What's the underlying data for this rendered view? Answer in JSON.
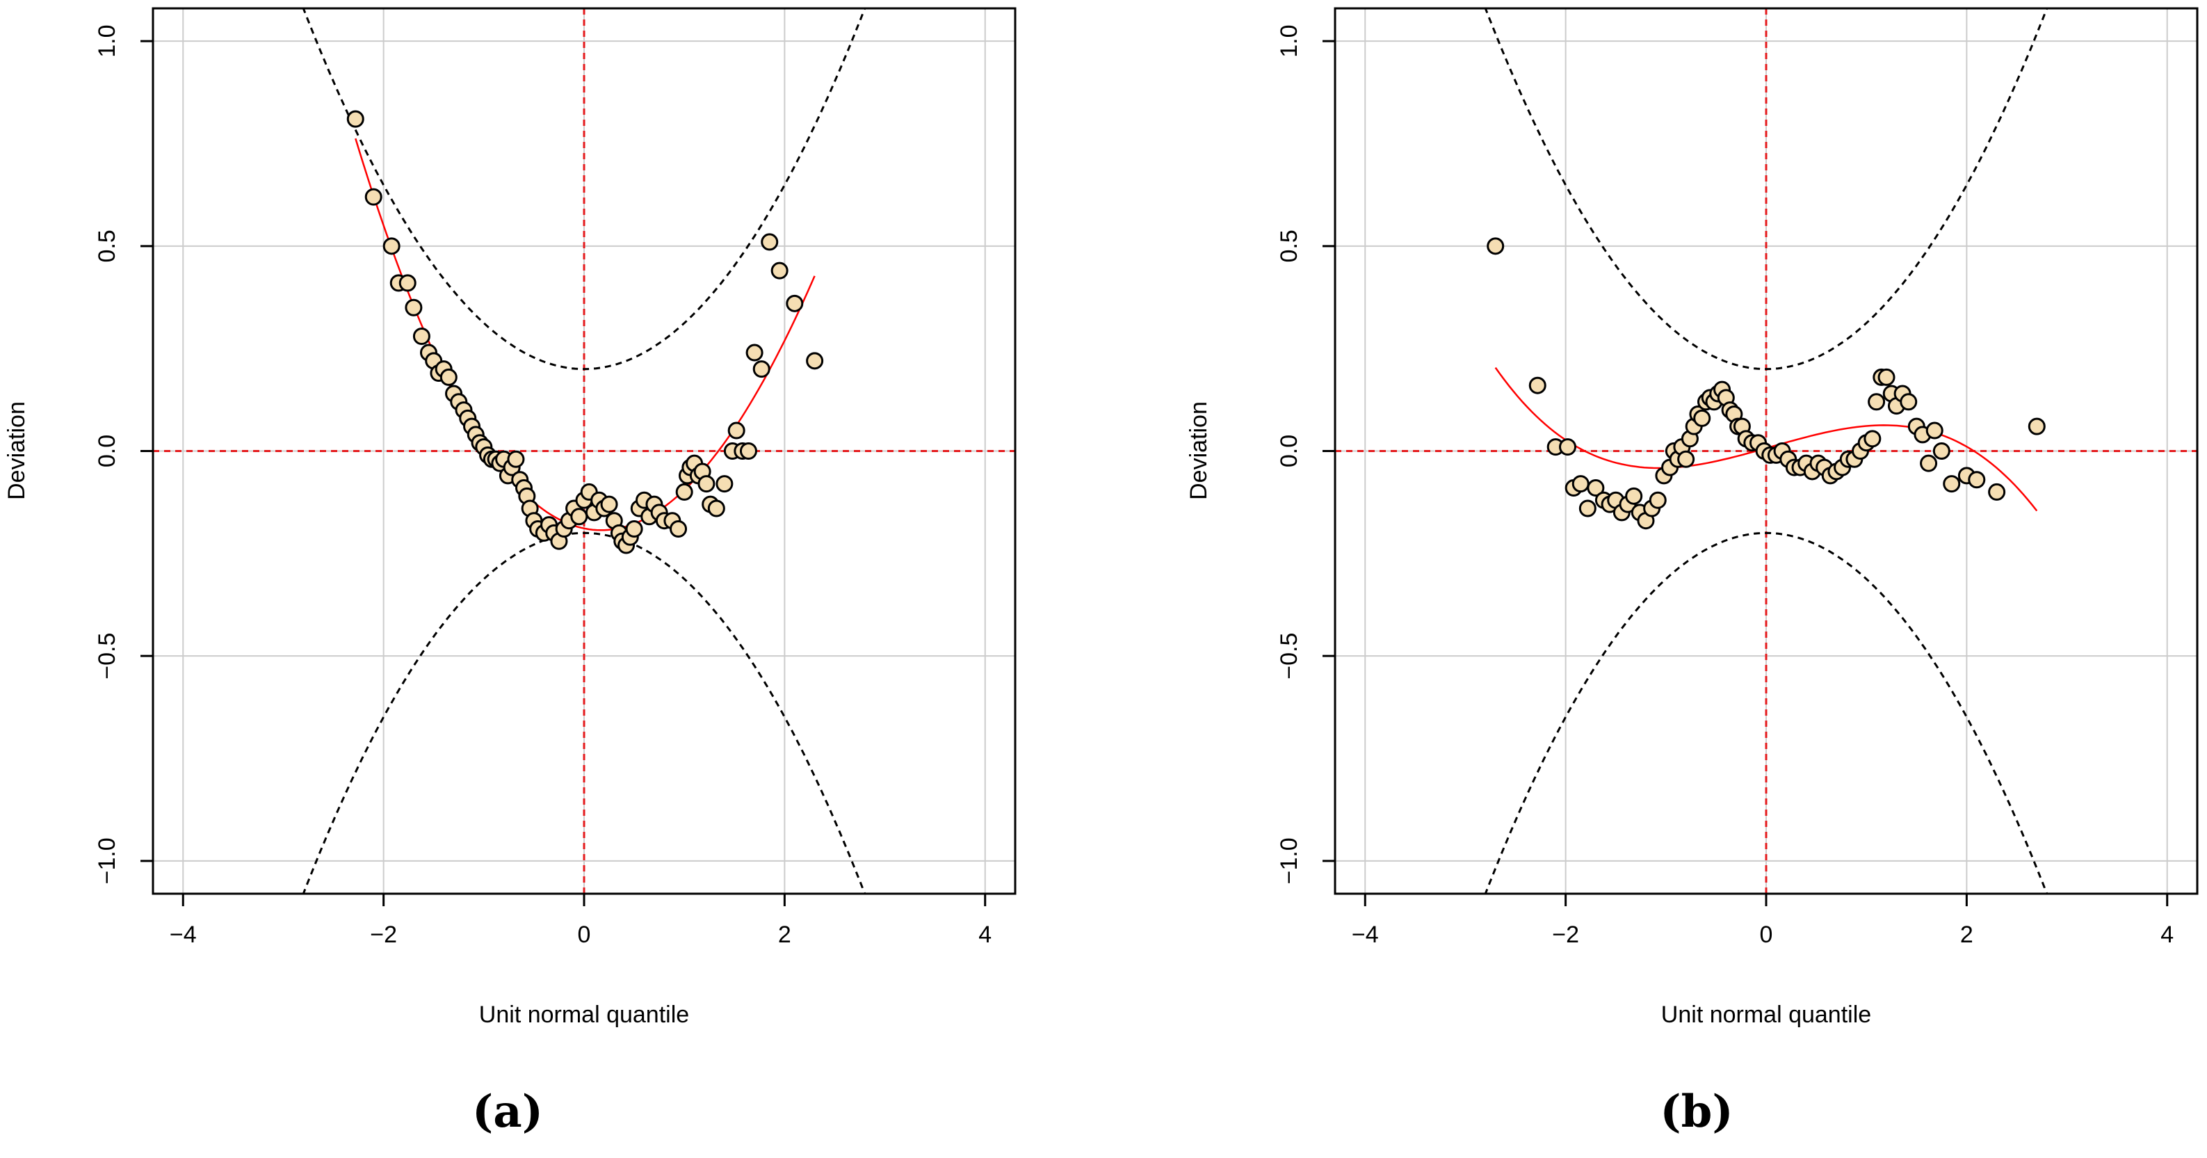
{
  "chart_data": [
    {
      "type": "scatter",
      "panel_label": "(a)",
      "xlabel": "Unit normal quantile",
      "ylabel": "Deviation",
      "xlim": [
        -4.3,
        4.3
      ],
      "ylim": [
        -1.08,
        1.08
      ],
      "xticks": [
        -4,
        -2,
        0,
        2,
        4
      ],
      "xtick_labels": [
        "−4",
        "−2",
        "0",
        "2",
        "4"
      ],
      "yticks": [
        -1.0,
        -0.5,
        0.0,
        0.5,
        1.0
      ],
      "ytick_labels": [
        "−1.0",
        "−0.5",
        "0.0",
        "0.5",
        "1.0"
      ],
      "grid": true,
      "confidence_band": "dashed black curves",
      "trend_line": "solid red smoother",
      "points": [
        [
          -2.28,
          0.81
        ],
        [
          -2.1,
          0.62
        ],
        [
          -1.92,
          0.5
        ],
        [
          -1.85,
          0.41
        ],
        [
          -1.76,
          0.41
        ],
        [
          -1.7,
          0.35
        ],
        [
          -1.62,
          0.28
        ],
        [
          -1.55,
          0.24
        ],
        [
          -1.5,
          0.22
        ],
        [
          -1.45,
          0.19
        ],
        [
          -1.4,
          0.2
        ],
        [
          -1.35,
          0.18
        ],
        [
          -1.3,
          0.14
        ],
        [
          -1.25,
          0.12
        ],
        [
          -1.2,
          0.1
        ],
        [
          -1.16,
          0.08
        ],
        [
          -1.12,
          0.06
        ],
        [
          -1.08,
          0.04
        ],
        [
          -1.04,
          0.02
        ],
        [
          -1.0,
          0.01
        ],
        [
          -0.96,
          -0.01
        ],
        [
          -0.92,
          -0.02
        ],
        [
          -0.88,
          -0.02
        ],
        [
          -0.84,
          -0.03
        ],
        [
          -0.8,
          -0.02
        ],
        [
          -0.76,
          -0.06
        ],
        [
          -0.72,
          -0.04
        ],
        [
          -0.68,
          -0.02
        ],
        [
          -0.64,
          -0.07
        ],
        [
          -0.6,
          -0.09
        ],
        [
          -0.57,
          -0.11
        ],
        [
          -0.54,
          -0.14
        ],
        [
          -0.5,
          -0.17
        ],
        [
          -0.46,
          -0.19
        ],
        [
          -0.4,
          -0.2
        ],
        [
          -0.35,
          -0.18
        ],
        [
          -0.3,
          -0.2
        ],
        [
          -0.25,
          -0.22
        ],
        [
          -0.2,
          -0.19
        ],
        [
          -0.15,
          -0.17
        ],
        [
          -0.1,
          -0.14
        ],
        [
          -0.05,
          -0.16
        ],
        [
          0.0,
          -0.12
        ],
        [
          0.05,
          -0.1
        ],
        [
          0.1,
          -0.15
        ],
        [
          0.15,
          -0.12
        ],
        [
          0.2,
          -0.14
        ],
        [
          0.25,
          -0.13
        ],
        [
          0.3,
          -0.17
        ],
        [
          0.35,
          -0.2
        ],
        [
          0.38,
          -0.22
        ],
        [
          0.42,
          -0.23
        ],
        [
          0.46,
          -0.21
        ],
        [
          0.5,
          -0.19
        ],
        [
          0.55,
          -0.14
        ],
        [
          0.6,
          -0.12
        ],
        [
          0.65,
          -0.16
        ],
        [
          0.7,
          -0.13
        ],
        [
          0.75,
          -0.15
        ],
        [
          0.8,
          -0.17
        ],
        [
          0.88,
          -0.17
        ],
        [
          0.94,
          -0.19
        ],
        [
          1.0,
          -0.1
        ],
        [
          1.03,
          -0.06
        ],
        [
          1.06,
          -0.04
        ],
        [
          1.1,
          -0.03
        ],
        [
          1.14,
          -0.06
        ],
        [
          1.18,
          -0.05
        ],
        [
          1.22,
          -0.08
        ],
        [
          1.26,
          -0.13
        ],
        [
          1.32,
          -0.14
        ],
        [
          1.4,
          -0.08
        ],
        [
          1.48,
          0.0
        ],
        [
          1.52,
          0.05
        ],
        [
          1.58,
          0.0
        ],
        [
          1.64,
          0.0
        ],
        [
          1.7,
          0.24
        ],
        [
          1.77,
          0.2
        ],
        [
          1.85,
          0.51
        ],
        [
          1.95,
          0.44
        ],
        [
          2.1,
          0.36
        ],
        [
          2.3,
          0.22
        ]
      ],
      "band_points": [
        {
          "x": 0.0,
          "y": 0.2
        },
        {
          "x": 1.0,
          "y": 0.28
        },
        {
          "x": 1.6,
          "y": 0.42
        },
        {
          "x": 2.0,
          "y": 0.62
        },
        {
          "x": 2.4,
          "y": 0.84
        },
        {
          "x": 2.8,
          "y": 1.08
        }
      ]
    },
    {
      "type": "scatter",
      "panel_label": "(b)",
      "xlabel": "Unit normal quantile",
      "ylabel": "Deviation",
      "xlim": [
        -4.3,
        4.3
      ],
      "ylim": [
        -1.08,
        1.08
      ],
      "xticks": [
        -4,
        -2,
        0,
        2,
        4
      ],
      "xtick_labels": [
        "−4",
        "−2",
        "0",
        "2",
        "4"
      ],
      "yticks": [
        -1.0,
        -0.5,
        0.0,
        0.5,
        1.0
      ],
      "ytick_labels": [
        "−1.0",
        "−0.5",
        "0.0",
        "0.5",
        "1.0"
      ],
      "grid": true,
      "confidence_band": "dashed black curves",
      "trend_line": "solid red smoother",
      "points": [
        [
          -2.7,
          0.5
        ],
        [
          -2.28,
          0.16
        ],
        [
          -2.1,
          0.01
        ],
        [
          -1.98,
          0.01
        ],
        [
          -1.92,
          -0.09
        ],
        [
          -1.85,
          -0.08
        ],
        [
          -1.78,
          -0.14
        ],
        [
          -1.7,
          -0.09
        ],
        [
          -1.62,
          -0.12
        ],
        [
          -1.56,
          -0.13
        ],
        [
          -1.5,
          -0.12
        ],
        [
          -1.44,
          -0.15
        ],
        [
          -1.38,
          -0.13
        ],
        [
          -1.32,
          -0.11
        ],
        [
          -1.26,
          -0.15
        ],
        [
          -1.2,
          -0.17
        ],
        [
          -1.14,
          -0.14
        ],
        [
          -1.08,
          -0.12
        ],
        [
          -1.02,
          -0.06
        ],
        [
          -0.96,
          -0.04
        ],
        [
          -0.92,
          0.0
        ],
        [
          -0.88,
          -0.02
        ],
        [
          -0.84,
          0.01
        ],
        [
          -0.8,
          -0.02
        ],
        [
          -0.76,
          0.03
        ],
        [
          -0.72,
          0.06
        ],
        [
          -0.68,
          0.09
        ],
        [
          -0.64,
          0.08
        ],
        [
          -0.6,
          0.12
        ],
        [
          -0.56,
          0.13
        ],
        [
          -0.52,
          0.12
        ],
        [
          -0.48,
          0.14
        ],
        [
          -0.44,
          0.15
        ],
        [
          -0.4,
          0.13
        ],
        [
          -0.36,
          0.1
        ],
        [
          -0.32,
          0.09
        ],
        [
          -0.28,
          0.06
        ],
        [
          -0.24,
          0.06
        ],
        [
          -0.2,
          0.03
        ],
        [
          -0.14,
          0.02
        ],
        [
          -0.08,
          0.02
        ],
        [
          -0.02,
          0.0
        ],
        [
          0.04,
          -0.01
        ],
        [
          0.1,
          -0.01
        ],
        [
          0.16,
          0.0
        ],
        [
          0.22,
          -0.02
        ],
        [
          0.28,
          -0.04
        ],
        [
          0.34,
          -0.04
        ],
        [
          0.4,
          -0.03
        ],
        [
          0.46,
          -0.05
        ],
        [
          0.52,
          -0.03
        ],
        [
          0.58,
          -0.04
        ],
        [
          0.64,
          -0.06
        ],
        [
          0.7,
          -0.05
        ],
        [
          0.76,
          -0.04
        ],
        [
          0.82,
          -0.02
        ],
        [
          0.88,
          -0.02
        ],
        [
          0.94,
          0.0
        ],
        [
          1.0,
          0.02
        ],
        [
          1.06,
          0.03
        ],
        [
          1.1,
          0.12
        ],
        [
          1.15,
          0.18
        ],
        [
          1.2,
          0.18
        ],
        [
          1.25,
          0.14
        ],
        [
          1.3,
          0.11
        ],
        [
          1.36,
          0.14
        ],
        [
          1.42,
          0.12
        ],
        [
          1.5,
          0.06
        ],
        [
          1.56,
          0.04
        ],
        [
          1.62,
          -0.03
        ],
        [
          1.68,
          0.05
        ],
        [
          1.75,
          0.0
        ],
        [
          1.85,
          -0.08
        ],
        [
          2.0,
          -0.06
        ],
        [
          2.1,
          -0.07
        ],
        [
          2.3,
          -0.1
        ],
        [
          2.7,
          0.06
        ]
      ],
      "band_points": [
        {
          "x": 0.0,
          "y": 0.2
        },
        {
          "x": 1.0,
          "y": 0.28
        },
        {
          "x": 1.6,
          "y": 0.42
        },
        {
          "x": 2.0,
          "y": 0.62
        },
        {
          "x": 2.4,
          "y": 0.84
        },
        {
          "x": 2.8,
          "y": 1.08
        }
      ]
    }
  ]
}
